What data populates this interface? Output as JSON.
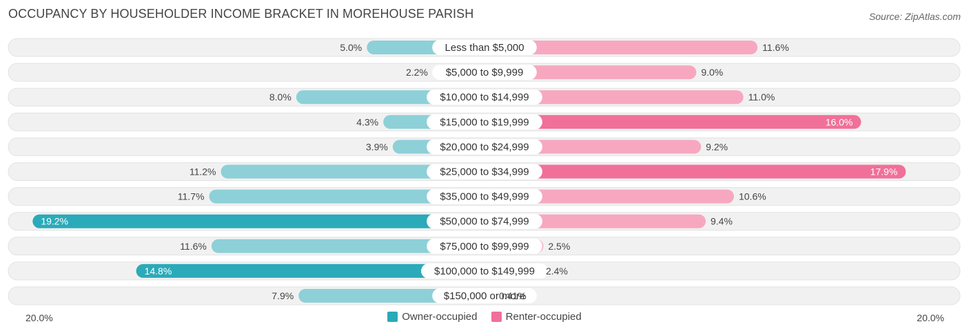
{
  "title": "OCCUPANCY BY HOUSEHOLDER INCOME BRACKET IN MOREHOUSE PARISH",
  "source": "Source: ZipAtlas.com",
  "colors": {
    "owner": "#2baab9",
    "owner_light": "#8dd0d8",
    "renter": "#f07099",
    "renter_light": "#f7a8c0",
    "row_bg": "#f1f1f1"
  },
  "legend": {
    "owner_label": "Owner-occupied",
    "renter_label": "Renter-occupied"
  },
  "axis": {
    "left_label": "20.0%",
    "right_label": "20.0%"
  },
  "chart_data": {
    "type": "bar",
    "orientation": "horizontal-diverging",
    "xlim": [
      -20,
      20
    ],
    "categories": [
      "Less than $5,000",
      "$5,000 to $9,999",
      "$10,000 to $14,999",
      "$15,000 to $19,999",
      "$20,000 to $24,999",
      "$25,000 to $34,999",
      "$35,000 to $49,999",
      "$50,000 to $74,999",
      "$75,000 to $99,999",
      "$100,000 to $149,999",
      "$150,000 or more"
    ],
    "series": [
      {
        "name": "Owner-occupied",
        "values": [
          5.0,
          2.2,
          8.0,
          4.3,
          3.9,
          11.2,
          11.7,
          19.2,
          11.6,
          14.8,
          7.9
        ],
        "labels": [
          "5.0%",
          "2.2%",
          "8.0%",
          "4.3%",
          "3.9%",
          "11.2%",
          "11.7%",
          "19.2%",
          "11.6%",
          "14.8%",
          "7.9%"
        ]
      },
      {
        "name": "Renter-occupied",
        "values": [
          11.6,
          9.0,
          11.0,
          16.0,
          9.2,
          17.9,
          10.6,
          9.4,
          2.5,
          2.4,
          0.41
        ],
        "labels": [
          "11.6%",
          "9.0%",
          "11.0%",
          "16.0%",
          "9.2%",
          "17.9%",
          "10.6%",
          "9.4%",
          "2.5%",
          "2.4%",
          "0.41%"
        ]
      }
    ]
  }
}
